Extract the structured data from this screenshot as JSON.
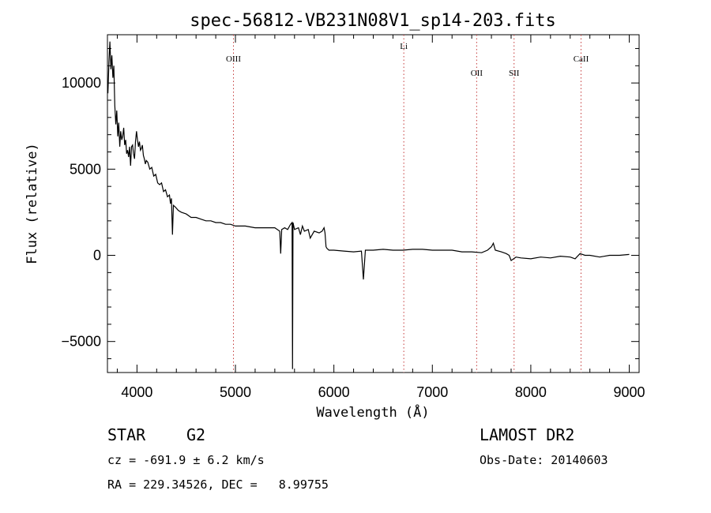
{
  "chart_data": {
    "type": "line",
    "title": "spec-56812-VB231N08V1_sp14-203.fits",
    "xlabel": "Wavelength (Å)",
    "ylabel": "Flux (relative)",
    "xlim": [
      3700,
      9100
    ],
    "ylim": [
      -6800,
      12800
    ],
    "xticks": [
      4000,
      5000,
      6000,
      7000,
      8000,
      9000
    ],
    "yticks": [
      -5000,
      0,
      5000,
      10000
    ],
    "grid": false,
    "series": [
      {
        "x": [
          3705,
          3715,
          3725,
          3735,
          3745,
          3755,
          3765,
          3775,
          3785,
          3795,
          3805,
          3815,
          3825,
          3835,
          3845,
          3855,
          3865,
          3875,
          3885,
          3895,
          3905,
          3915,
          3925,
          3935,
          3945,
          3955,
          3965,
          3975,
          3985,
          3995,
          4005,
          4015,
          4025,
          4035,
          4045,
          4055,
          4065,
          4075,
          4085,
          4095,
          4110,
          4130,
          4150,
          4170,
          4190,
          4210,
          4230,
          4250,
          4270,
          4290,
          4310,
          4330,
          4340,
          4350,
          4360,
          4370,
          4390,
          4420,
          4450,
          4500,
          4550,
          4600,
          4650,
          4700,
          4750,
          4800,
          4850,
          4900,
          4950,
          5000,
          5100,
          5200,
          5300,
          5400,
          5450,
          5460,
          5470,
          5500,
          5530,
          5560,
          5575,
          5580,
          5585,
          5600,
          5640,
          5660,
          5680,
          5700,
          5740,
          5760,
          5800,
          5850,
          5880,
          5900,
          5910,
          5920,
          5930,
          5950,
          6000,
          6100,
          6200,
          6280,
          6300,
          6320,
          6400,
          6500,
          6600,
          6700,
          6800,
          6900,
          7000,
          7100,
          7200,
          7300,
          7400,
          7500,
          7560,
          7600,
          7620,
          7640,
          7700,
          7750,
          7780,
          7800,
          7850,
          7900,
          8000,
          8100,
          8200,
          8300,
          8400,
          8450,
          8500,
          8550,
          8600,
          8700,
          8800,
          8900,
          9000
        ],
        "y": [
          9400,
          11200,
          12400,
          10800,
          11600,
          10300,
          11000,
          8700,
          7600,
          8400,
          6900,
          7700,
          6300,
          7200,
          6700,
          6900,
          7400,
          6400,
          6700,
          5900,
          6100,
          5700,
          6300,
          5200,
          6300,
          6400,
          5900,
          5600,
          6600,
          7200,
          6700,
          6300,
          6600,
          6100,
          6200,
          6400,
          5800,
          5600,
          5300,
          5500,
          5400,
          5000,
          5100,
          4600,
          4700,
          4200,
          4100,
          4200,
          3700,
          3800,
          3400,
          3500,
          3000,
          3300,
          1200,
          2900,
          2800,
          2600,
          2500,
          2400,
          2200,
          2200,
          2100,
          2000,
          2000,
          1900,
          1900,
          1800,
          1800,
          1700,
          1700,
          1600,
          1600,
          1600,
          1400,
          100,
          1500,
          1600,
          1500,
          1800,
          1900,
          -6600,
          1900,
          1500,
          1600,
          1200,
          1700,
          1400,
          1500,
          1000,
          1400,
          1300,
          1400,
          1600,
          1300,
          500,
          400,
          300,
          300,
          250,
          200,
          250,
          -1400,
          300,
          300,
          350,
          300,
          300,
          350,
          350,
          300,
          300,
          300,
          200,
          200,
          150,
          300,
          500,
          700,
          300,
          200,
          100,
          0,
          -300,
          -100,
          -150,
          -200,
          -100,
          -150,
          -50,
          -100,
          -200,
          100,
          0,
          0,
          -100,
          0,
          0,
          50
        ]
      }
    ],
    "reference_lines": [
      {
        "label": "OIII",
        "x": 4980
      },
      {
        "label": "Li",
        "x": 6710
      },
      {
        "label": "OII",
        "x": 7450
      },
      {
        "label": "SII",
        "x": 7830
      },
      {
        "label": "CaII",
        "x": 8510
      }
    ]
  },
  "footer": {
    "object_class": "STAR",
    "subclass": "G2",
    "survey": "LAMOST DR2",
    "redshift": "cz = -691.9 ± 6.2 km/s",
    "obs_date": "Obs-Date: 20140603",
    "coords": "RA = 229.34526, DEC =   8.99755"
  }
}
